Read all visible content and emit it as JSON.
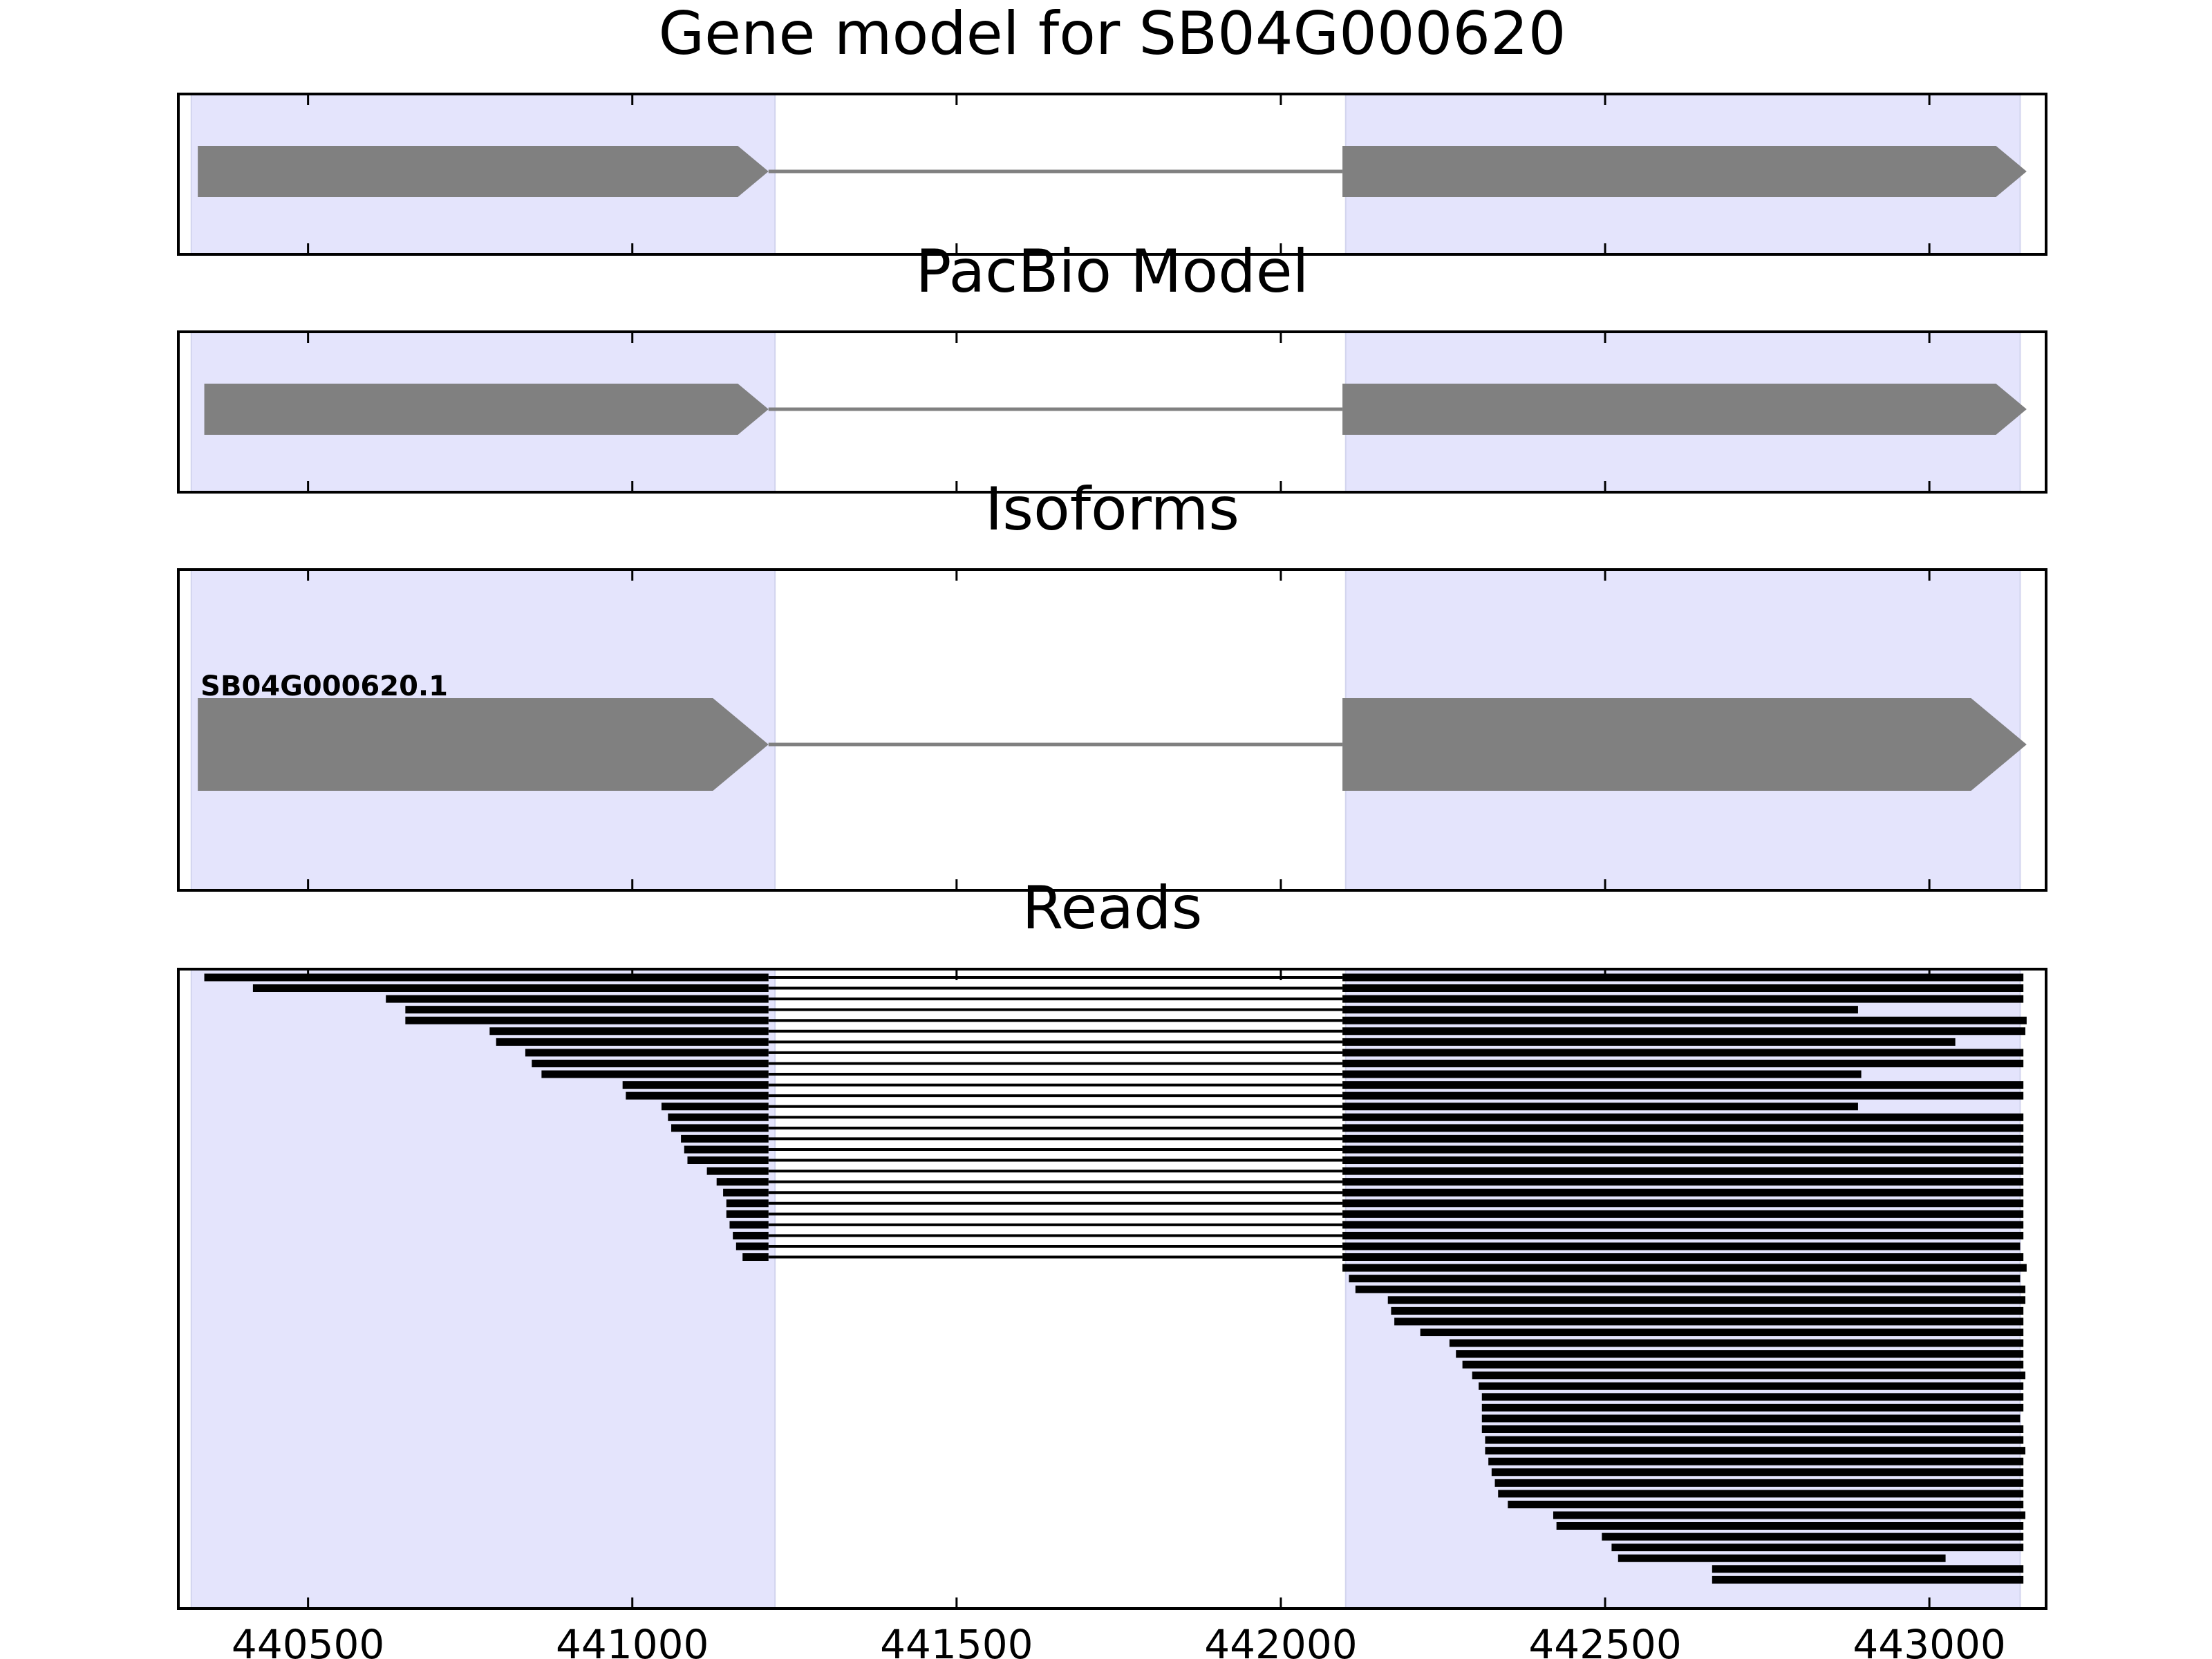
{
  "chart_data": [
    {
      "type": "gene-model",
      "title": "Gene model for SB04G000620",
      "xlim": [
        440300,
        443180
      ],
      "highlight_regions": [
        [
          440320,
          441220
        ],
        [
          442100,
          443140
        ]
      ],
      "exons": [
        [
          440330,
          441210
        ],
        [
          442095,
          443150
        ]
      ],
      "strand": "+"
    },
    {
      "type": "gene-model",
      "title": "PacBio Model",
      "xlim": [
        440300,
        443180
      ],
      "highlight_regions": [
        [
          440320,
          441220
        ],
        [
          442100,
          443140
        ]
      ],
      "exons": [
        [
          440340,
          441210
        ],
        [
          442095,
          443150
        ]
      ],
      "strand": "+"
    },
    {
      "type": "gene-model",
      "title": "Isoforms",
      "xlim": [
        440300,
        443180
      ],
      "highlight_regions": [
        [
          440320,
          441220
        ],
        [
          442100,
          443140
        ]
      ],
      "isoforms": [
        {
          "label": "SB04G000620.1",
          "exons": [
            [
              440330,
              441210
            ],
            [
              442095,
              443150
            ]
          ]
        }
      ]
    },
    {
      "type": "read-alignment",
      "title": "Reads",
      "xlim": [
        440300,
        443180
      ],
      "xticks": [
        440500,
        441000,
        441500,
        442000,
        442500,
        443000
      ],
      "highlight_regions": [
        [
          440320,
          441220
        ],
        [
          442100,
          443140
        ]
      ],
      "spliced_reads": [
        {
          "start": 440340,
          "end": 443145
        },
        {
          "start": 440415,
          "end": 443145
        },
        {
          "start": 440620,
          "end": 443145
        },
        {
          "start": 440650,
          "end": 442890
        },
        {
          "start": 440650,
          "end": 443150
        },
        {
          "start": 440780,
          "end": 443148
        },
        {
          "start": 440790,
          "end": 443040
        },
        {
          "start": 440835,
          "end": 443145
        },
        {
          "start": 440845,
          "end": 443145
        },
        {
          "start": 440860,
          "end": 442895
        },
        {
          "start": 440985,
          "end": 443145
        },
        {
          "start": 440990,
          "end": 443145
        },
        {
          "start": 441045,
          "end": 442890
        },
        {
          "start": 441055,
          "end": 443145
        },
        {
          "start": 441060,
          "end": 443145
        },
        {
          "start": 441075,
          "end": 443145
        },
        {
          "start": 441080,
          "end": 443145
        },
        {
          "start": 441085,
          "end": 443145
        },
        {
          "start": 441115,
          "end": 443145
        },
        {
          "start": 441130,
          "end": 443145
        },
        {
          "start": 441140,
          "end": 443145
        },
        {
          "start": 441145,
          "end": 443145
        },
        {
          "start": 441145,
          "end": 443145
        },
        {
          "start": 441150,
          "end": 443145
        },
        {
          "start": 441155,
          "end": 443145
        },
        {
          "start": 441160,
          "end": 443140
        },
        {
          "start": 441170,
          "end": 443145
        }
      ],
      "exon_reads": [
        {
          "start": 442095,
          "end": 443150
        },
        {
          "start": 442105,
          "end": 443140
        },
        {
          "start": 442115,
          "end": 443148
        },
        {
          "start": 442165,
          "end": 443148
        },
        {
          "start": 442170,
          "end": 443145
        },
        {
          "start": 442175,
          "end": 443145
        },
        {
          "start": 442215,
          "end": 443145
        },
        {
          "start": 442260,
          "end": 443145
        },
        {
          "start": 442270,
          "end": 443145
        },
        {
          "start": 442280,
          "end": 443145
        },
        {
          "start": 442295,
          "end": 443148
        },
        {
          "start": 442305,
          "end": 443145
        },
        {
          "start": 442310,
          "end": 443145
        },
        {
          "start": 442310,
          "end": 443145
        },
        {
          "start": 442310,
          "end": 443140
        },
        {
          "start": 442310,
          "end": 443145
        },
        {
          "start": 442315,
          "end": 443145
        },
        {
          "start": 442315,
          "end": 443148
        },
        {
          "start": 442320,
          "end": 443145
        },
        {
          "start": 442325,
          "end": 443145
        },
        {
          "start": 442330,
          "end": 443145
        },
        {
          "start": 442335,
          "end": 443145
        },
        {
          "start": 442350,
          "end": 443145
        },
        {
          "start": 442420,
          "end": 443148
        },
        {
          "start": 442425,
          "end": 443145
        },
        {
          "start": 442495,
          "end": 443145
        },
        {
          "start": 442510,
          "end": 443145
        },
        {
          "start": 442520,
          "end": 443025
        },
        {
          "start": 442665,
          "end": 443145
        },
        {
          "start": 442665,
          "end": 443145
        }
      ]
    }
  ]
}
